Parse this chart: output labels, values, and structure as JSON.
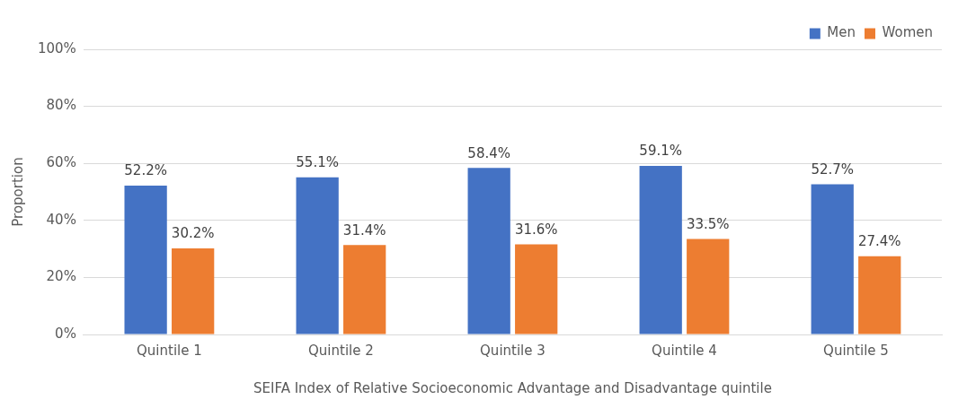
{
  "chart_data": {
    "type": "bar",
    "xlabel": "SEIFA Index of Relative Socioeconomic Advantage and Disadvantage quintile",
    "ylabel": "Proportion",
    "categories": [
      "Quintile 1",
      "Quintile 2",
      "Quintile 3",
      "Quintile 4",
      "Quintile 5"
    ],
    "series": [
      {
        "name": "Men",
        "color": "#4472c4",
        "values": [
          52.2,
          55.1,
          58.4,
          59.1,
          52.7
        ],
        "value_labels": [
          "52.2%",
          "55.1%",
          "58.4%",
          "59.1%",
          "52.7%"
        ]
      },
      {
        "name": "Women",
        "color": "#ed7d31",
        "values": [
          30.2,
          31.4,
          31.6,
          33.5,
          27.4
        ],
        "value_labels": [
          "30.2%",
          "31.4%",
          "31.6%",
          "33.5%",
          "27.4%"
        ]
      }
    ],
    "ylim": [
      0,
      100
    ],
    "yticks": [
      {
        "value": 0,
        "label": "0%"
      },
      {
        "value": 20,
        "label": "20%"
      },
      {
        "value": 40,
        "label": "40%"
      },
      {
        "value": 60,
        "label": "60%"
      },
      {
        "value": 80,
        "label": "80%"
      },
      {
        "value": 100,
        "label": "100%"
      }
    ],
    "grid": "y",
    "legend": "top right"
  }
}
